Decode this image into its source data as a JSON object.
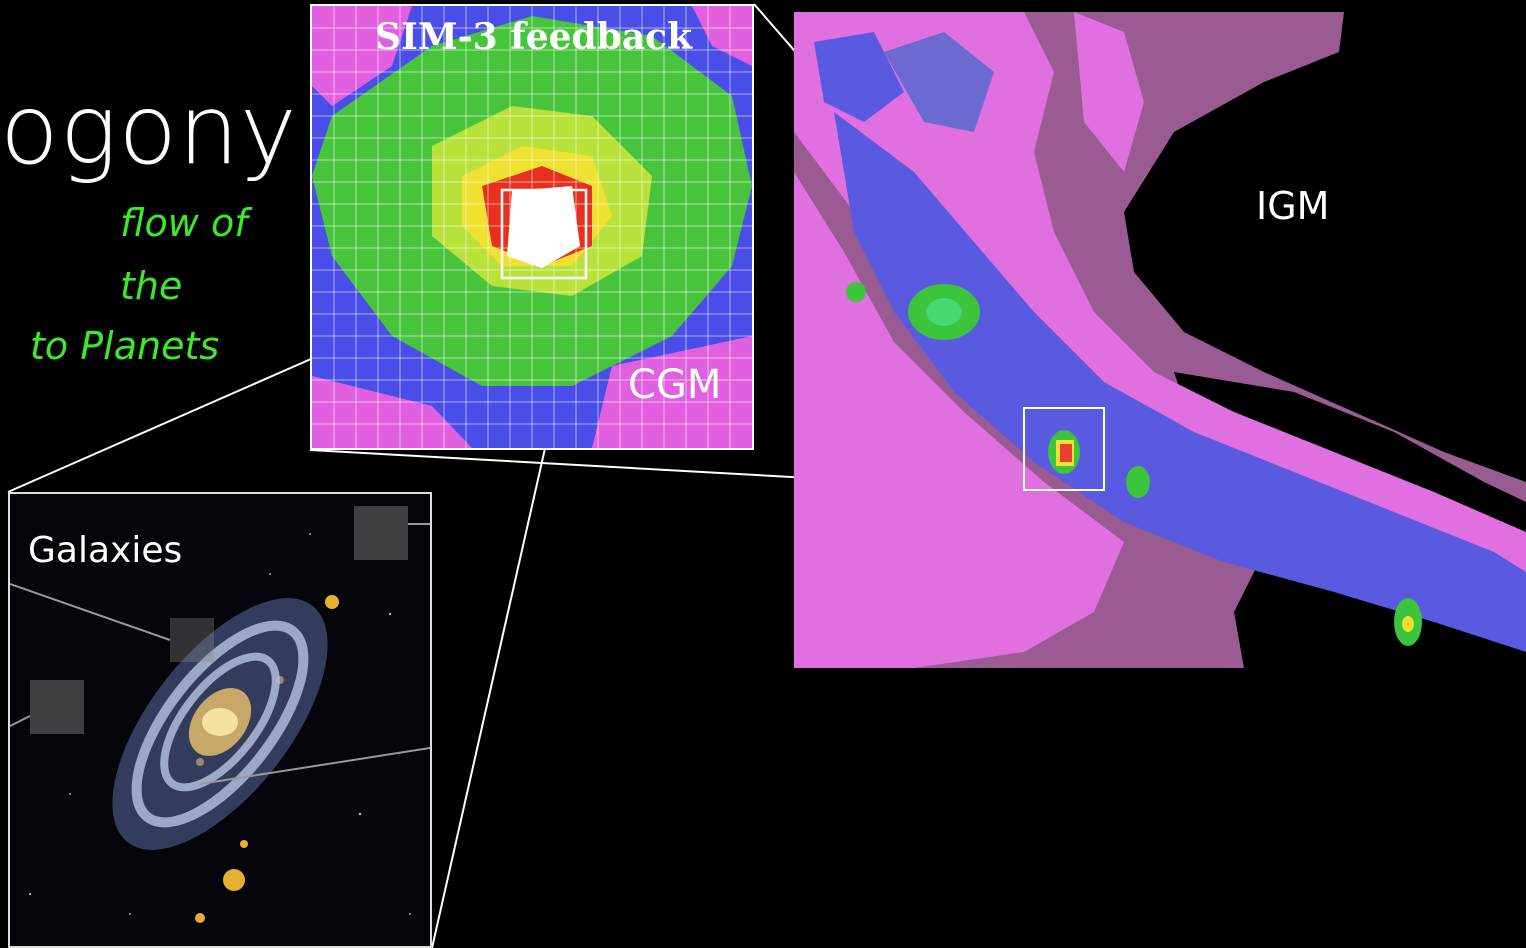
{
  "slide": {
    "title_fragment": "ogony",
    "subtitle_lines": [
      "flow of",
      "the",
      "to Planets"
    ],
    "colors": {
      "background": "#000000",
      "subtitle": "#3dea29",
      "sim_blue": "#4a4ee8",
      "sim_green": "#48c43c",
      "sim_yellow": "#f0e030",
      "sim_red": "#e83020",
      "sim_magenta": "#e060e0",
      "igm_mauve": "#9a5a92",
      "igm_pink": "#e070e0",
      "igm_blue": "#5a5ae0"
    }
  },
  "sim_panel": {
    "title": "SIM-3  feedback",
    "label": "CGM"
  },
  "igm_panel": {
    "label": "IGM"
  },
  "galaxy_panel": {
    "label": "Galaxies"
  }
}
